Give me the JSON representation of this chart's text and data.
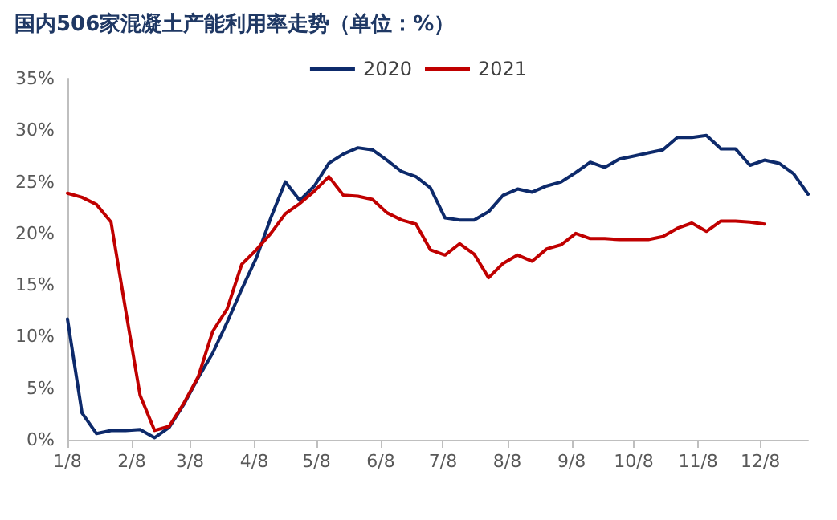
{
  "chart_data": {
    "type": "line",
    "title": "国内506家混凝土产能利用率走势（单位：%）",
    "x": [
      "--01-08",
      "--01-15",
      "--01-22",
      "--01-29",
      "--02-05",
      "--02-12",
      "--02-19",
      "--02-26",
      "--03-05",
      "--03-12",
      "--03-19",
      "--03-26",
      "--04-02",
      "--04-09",
      "--04-16",
      "--04-23",
      "--04-30",
      "--05-07",
      "--05-14",
      "--05-21",
      "--05-28",
      "--06-04",
      "--06-11",
      "--06-18",
      "--06-25",
      "--07-02",
      "--07-09",
      "--07-16",
      "--07-23",
      "--07-30",
      "--08-06",
      "--08-13",
      "--08-20",
      "--08-27",
      "--09-03",
      "--09-10",
      "--09-17",
      "--09-24",
      "--10-01",
      "--10-08",
      "--10-15",
      "--10-22",
      "--10-29",
      "--11-05",
      "--11-12",
      "--11-19",
      "--11-26",
      "--12-03",
      "--12-10",
      "--12-17",
      "--12-24",
      "--12-31"
    ],
    "series": [
      {
        "name": "2020",
        "color": "#0d2a6b",
        "values": [
          11.7,
          2.6,
          0.6,
          0.9,
          0.9,
          1.0,
          0.2,
          1.2,
          3.4,
          6.0,
          8.4,
          11.4,
          14.6,
          17.6,
          21.5,
          25.0,
          23.2,
          24.6,
          26.8,
          27.7,
          28.3,
          28.1,
          27.1,
          26.0,
          25.5,
          24.4,
          21.5,
          21.3,
          21.3,
          22.1,
          23.7,
          24.3,
          24.0,
          24.6,
          25.0,
          25.9,
          26.9,
          26.4,
          27.2,
          27.5,
          27.8,
          28.1,
          29.3,
          29.3,
          29.5,
          28.2,
          28.2,
          26.6,
          27.1,
          26.8,
          25.8,
          23.8
        ]
      },
      {
        "name": "2021",
        "color": "#c00000",
        "values": [
          23.9,
          23.5,
          22.8,
          21.1,
          12.6,
          4.3,
          0.9,
          1.3,
          3.5,
          6.1,
          10.5,
          12.7,
          17.0,
          18.4,
          20.0,
          21.9,
          22.9,
          24.1,
          25.5,
          23.7,
          23.6,
          23.3,
          22.0,
          21.3,
          20.9,
          18.4,
          17.9,
          19.0,
          18.0,
          15.7,
          17.1,
          17.9,
          17.3,
          18.5,
          18.9,
          20.0,
          19.5,
          19.5,
          19.4,
          19.4,
          19.4,
          19.7,
          20.5,
          21.0,
          20.2,
          21.2,
          21.2,
          21.1,
          20.9,
          null,
          null,
          null
        ]
      }
    ],
    "xlim": [
      "--01-08",
      "--12-31"
    ],
    "xticks": [
      {
        "value": "--01-08",
        "label": "1/8"
      },
      {
        "value": "--02-08",
        "label": "2/8"
      },
      {
        "value": "--03-08",
        "label": "3/8"
      },
      {
        "value": "--04-08",
        "label": "4/8"
      },
      {
        "value": "--05-08",
        "label": "5/8"
      },
      {
        "value": "--06-08",
        "label": "6/8"
      },
      {
        "value": "--07-08",
        "label": "7/8"
      },
      {
        "value": "--08-08",
        "label": "8/8"
      },
      {
        "value": "--09-08",
        "label": "9/8"
      },
      {
        "value": "--10-08",
        "label": "10/8"
      },
      {
        "value": "--11-08",
        "label": "11/8"
      },
      {
        "value": "--12-08",
        "label": "12/8"
      }
    ],
    "ylim": [
      0,
      35
    ],
    "yticks": [
      {
        "value": 0,
        "label": "0%"
      },
      {
        "value": 5,
        "label": "5%"
      },
      {
        "value": 10,
        "label": "10%"
      },
      {
        "value": 15,
        "label": "15%"
      },
      {
        "value": 20,
        "label": "20%"
      },
      {
        "value": 25,
        "label": "25%"
      },
      {
        "value": 30,
        "label": "30%"
      },
      {
        "value": 35,
        "label": "35%"
      }
    ],
    "grid": false,
    "legend": "top",
    "marker": "none",
    "line_style": "solid"
  }
}
